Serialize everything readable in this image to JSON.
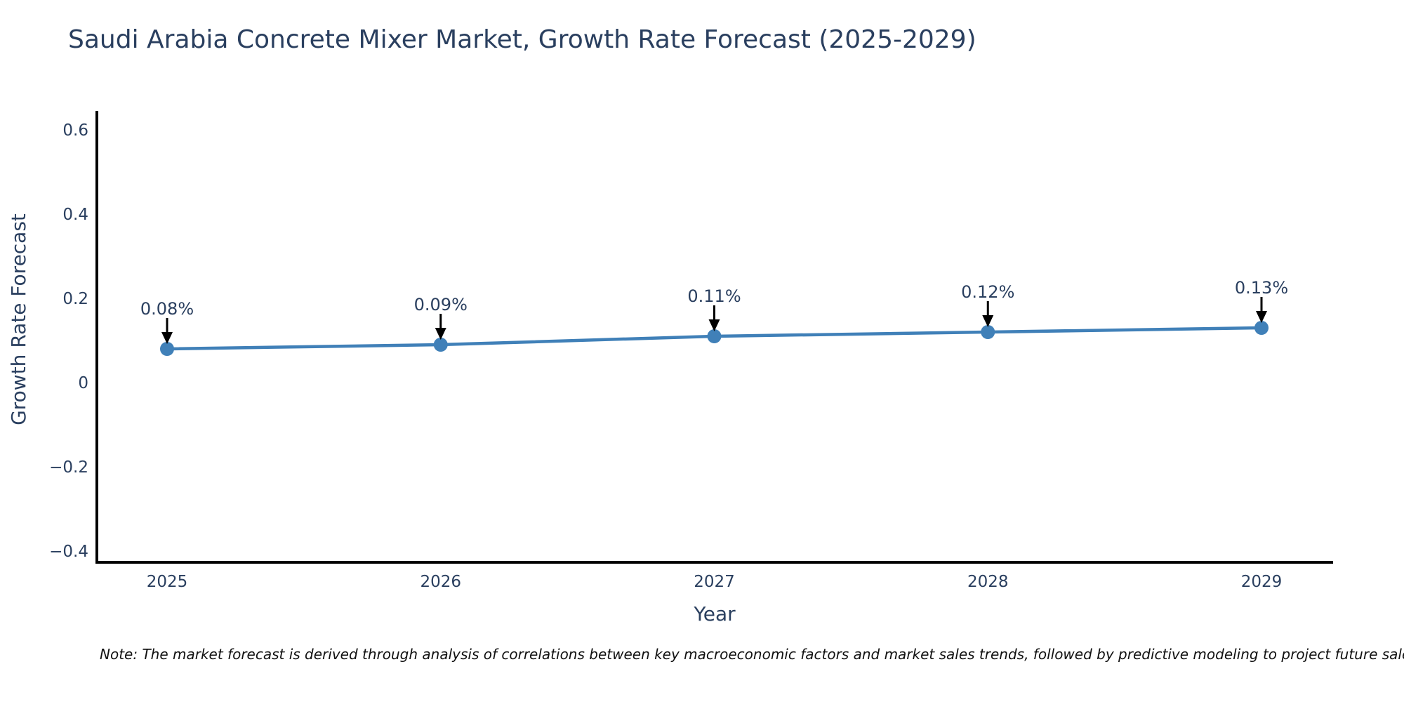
{
  "chart_data": {
    "type": "line",
    "title": "Saudi Arabia Concrete Mixer Market, Growth Rate Forecast (2025-2029)",
    "xlabel": "Year",
    "ylabel": "Growth Rate Forecast",
    "x": [
      "2025",
      "2026",
      "2027",
      "2028",
      "2029"
    ],
    "series": [
      {
        "name": "Growth Rate Forecast",
        "values": [
          0.08,
          0.09,
          0.11,
          0.12,
          0.13
        ],
        "point_labels": [
          "0.08%",
          "0.09%",
          "0.11%",
          "0.12%",
          "0.13%"
        ]
      }
    ],
    "y_tick_values": [
      -0.4,
      -0.2,
      0,
      0.2,
      0.4,
      0.6
    ],
    "y_tick_labels": [
      "−0.4",
      "−0.2",
      "0",
      "0.2",
      "0.4",
      "0.6"
    ],
    "ylim": [
      -0.427,
      0.645
    ],
    "grid": false,
    "legend_position": "none",
    "colors": {
      "line": "#4080b8",
      "marker": "#4080b8",
      "axis": "#000000",
      "arrow": "#000000",
      "text": "#2a3f5f",
      "background": "#ffffff"
    }
  },
  "note": {
    "text": "Note: The market forecast is derived through analysis of correlations between key macroeconomic factors and market sales trends, followed by predictive modeling to project future sales"
  }
}
